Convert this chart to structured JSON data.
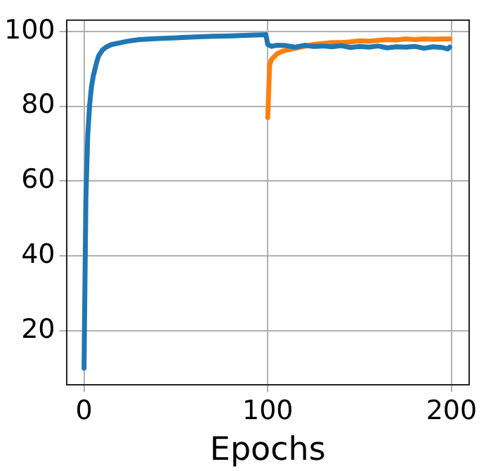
{
  "chart_data": {
    "type": "line",
    "xlabel": "Epochs",
    "xlim": [
      -9.6,
      209.6
    ],
    "ylim": [
      5.5,
      103
    ],
    "xticks": [
      0,
      100,
      200
    ],
    "yticks": [
      20,
      40,
      60,
      80,
      100
    ],
    "grid": true,
    "marker": "none",
    "line_style": "solid",
    "series": [
      {
        "color": "#1f77b4",
        "x": [
          0,
          1,
          2,
          3,
          4,
          5,
          6,
          7,
          8,
          10,
          12,
          15,
          20,
          25,
          30,
          40,
          50,
          60,
          70,
          80,
          90,
          99,
          100,
          102,
          105,
          110,
          115,
          120,
          125,
          130,
          135,
          140,
          145,
          150,
          155,
          160,
          165,
          170,
          175,
          180,
          185,
          190,
          195,
          198,
          199
        ],
        "values": [
          10,
          55,
          72,
          80,
          85,
          88,
          90,
          92,
          93.5,
          95,
          95.8,
          96.5,
          97,
          97.5,
          97.8,
          98.1,
          98.3,
          98.5,
          98.7,
          98.8,
          99,
          99.1,
          96.5,
          96,
          96.3,
          96.2,
          95.8,
          96.3,
          96,
          96.1,
          95.9,
          96.2,
          95.7,
          96,
          95.8,
          96.1,
          95.6,
          95.9,
          95.8,
          96,
          95.5,
          95.9,
          95.7,
          95.3,
          95.8
        ]
      },
      {
        "color": "#ff7f0e",
        "x": [
          100,
          101,
          102,
          103,
          105,
          107,
          110,
          115,
          120,
          125,
          130,
          135,
          140,
          145,
          150,
          155,
          160,
          165,
          170,
          175,
          180,
          185,
          190,
          195,
          199
        ],
        "values": [
          77,
          91,
          92.5,
          93,
          94,
          94.5,
          95,
          95.5,
          96,
          96.5,
          96.8,
          97,
          97,
          97.2,
          97.5,
          97.4,
          97.6,
          97.8,
          97.7,
          98,
          97.8,
          98,
          97.9,
          98,
          98
        ]
      }
    ]
  }
}
